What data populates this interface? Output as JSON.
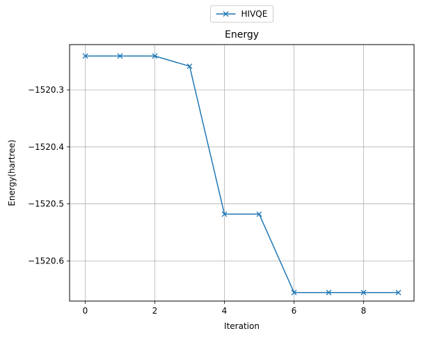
{
  "chart_data": {
    "type": "line",
    "title": "Energy",
    "xlabel": "Iteration",
    "ylabel": "Energy(hartree)",
    "xlim": [
      -0.45,
      9.45
    ],
    "ylim": [
      -1520.6705,
      -1520.2205
    ],
    "xticks": [
      0,
      2,
      4,
      6,
      8
    ],
    "xtick_labels": [
      "0",
      "2",
      "4",
      "6",
      "8"
    ],
    "yticks": [
      -1520.3,
      -1520.4,
      -1520.5,
      -1520.6
    ],
    "ytick_labels": [
      "−1520.3",
      "−1520.4",
      "−1520.5",
      "−1520.6"
    ],
    "grid": true,
    "legend_position": "top-center, above the plot",
    "series": [
      {
        "name": "HIVQE",
        "color": "#1f77b4",
        "marker": "x",
        "x": [
          0,
          1,
          2,
          3,
          4,
          5,
          6,
          7,
          8,
          9
        ],
        "y": [
          -1520.2405,
          -1520.2405,
          -1520.2405,
          -1520.2585,
          -1520.518,
          -1520.518,
          -1520.6555,
          -1520.6555,
          -1520.6555,
          -1520.6555
        ]
      }
    ]
  }
}
